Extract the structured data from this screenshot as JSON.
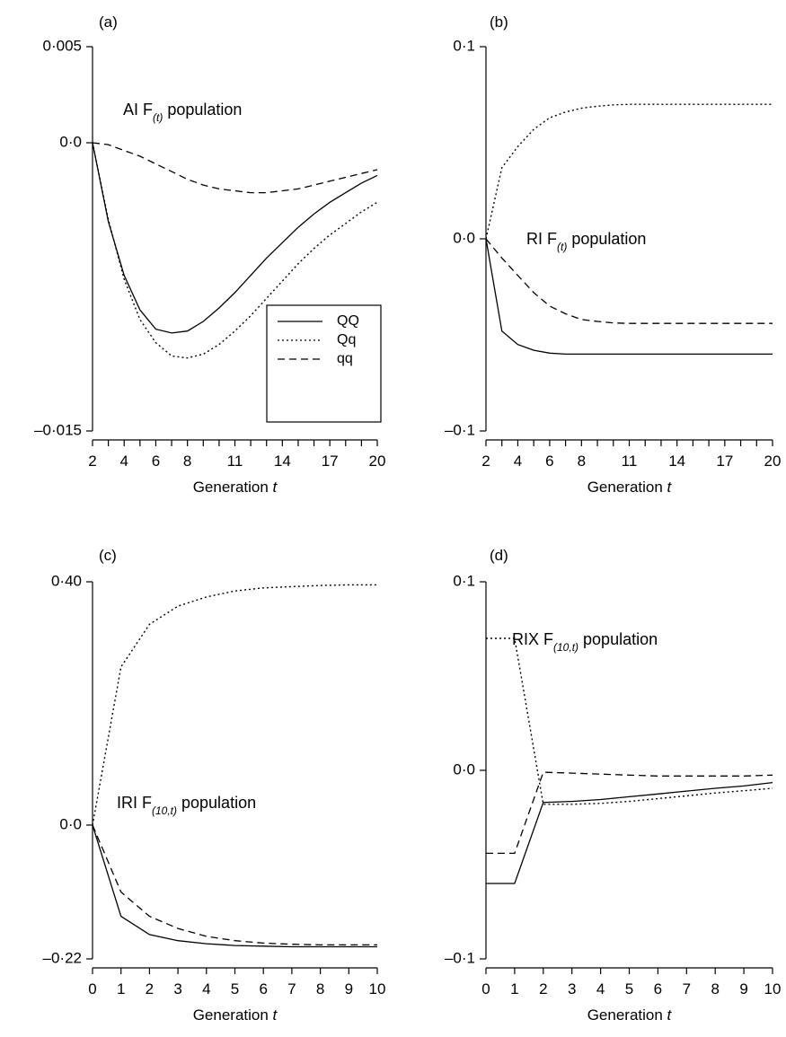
{
  "figure_title": "",
  "legend": {
    "entries": [
      {
        "label": "QQ",
        "style": "solid"
      },
      {
        "label": "Qq",
        "style": "dotted"
      },
      {
        "label": "qq",
        "style": "dashed"
      }
    ]
  },
  "chart_data": [
    {
      "type": "line",
      "panel_label": "(a)",
      "annotation": {
        "prefix": "AI F",
        "sub": "(t)",
        "suffix": " population"
      },
      "xlabel": "Generation t",
      "x_ticks": [
        2,
        3,
        4,
        5,
        6,
        7,
        8,
        9,
        10,
        11,
        12,
        13,
        14,
        15,
        16,
        17,
        18,
        19,
        20
      ],
      "x_tick_labels": [
        "2",
        "4",
        "6",
        "8",
        "11",
        "14",
        "17",
        "20"
      ],
      "x_labeled_values": [
        2,
        4,
        6,
        8,
        11,
        14,
        17,
        20
      ],
      "xlim": [
        2,
        20
      ],
      "ylim": [
        -0.015,
        0.005
      ],
      "y_ticks": [
        0.005,
        0.0,
        -0.015
      ],
      "y_tick_labels": [
        "0·005",
        "0·0",
        "–0·015"
      ],
      "x": [
        2,
        3,
        4,
        5,
        6,
        7,
        8,
        9,
        10,
        11,
        12,
        13,
        14,
        15,
        16,
        17,
        18,
        19,
        20
      ],
      "series": [
        {
          "name": "QQ",
          "style": "solid",
          "values": [
            0.0,
            -0.0041,
            -0.0069,
            -0.0087,
            -0.0097,
            -0.0099,
            -0.0098,
            -0.0093,
            -0.0086,
            -0.0078,
            -0.0069,
            -0.006,
            -0.0052,
            -0.0044,
            -0.0037,
            -0.0031,
            -0.0026,
            -0.0021,
            -0.0017
          ]
        },
        {
          "name": "Qq",
          "style": "dotted",
          "values": [
            0.0,
            -0.004,
            -0.0071,
            -0.0092,
            -0.0104,
            -0.0111,
            -0.0112,
            -0.011,
            -0.0105,
            -0.0098,
            -0.009,
            -0.0081,
            -0.0072,
            -0.0063,
            -0.0055,
            -0.0048,
            -0.0042,
            -0.0036,
            -0.0031
          ]
        },
        {
          "name": "qq",
          "style": "dashed",
          "values": [
            0.0,
            -0.0001,
            -0.0004,
            -0.0007,
            -0.0011,
            -0.0015,
            -0.0019,
            -0.0022,
            -0.0024,
            -0.0025,
            -0.0026,
            -0.0026,
            -0.0025,
            -0.0024,
            -0.0022,
            -0.002,
            -0.0018,
            -0.0016,
            -0.0014
          ]
        }
      ],
      "legend_placement": "lower-right"
    },
    {
      "type": "line",
      "panel_label": "(b)",
      "annotation": {
        "prefix": "RI F",
        "sub": "(t)",
        "suffix": " population"
      },
      "xlabel": "Generation t",
      "x_ticks": [
        2,
        3,
        4,
        5,
        6,
        7,
        8,
        9,
        10,
        11,
        12,
        13,
        14,
        15,
        16,
        17,
        18,
        19,
        20
      ],
      "x_tick_labels": [
        "2",
        "4",
        "6",
        "8",
        "11",
        "14",
        "17",
        "20"
      ],
      "x_labeled_values": [
        2,
        4,
        6,
        8,
        11,
        14,
        17,
        20
      ],
      "xlim": [
        2,
        20
      ],
      "ylim": [
        -0.1,
        0.1
      ],
      "y_ticks": [
        0.1,
        0.0,
        -0.1
      ],
      "y_tick_labels": [
        "0·1",
        "0·0",
        "–0·1"
      ],
      "x": [
        2,
        3,
        4,
        5,
        6,
        7,
        8,
        9,
        10,
        11,
        12,
        13,
        14,
        15,
        16,
        17,
        18,
        19,
        20
      ],
      "series": [
        {
          "name": "QQ",
          "style": "solid",
          "values": [
            0.0,
            -0.048,
            -0.055,
            -0.058,
            -0.0595,
            -0.06,
            -0.06,
            -0.06,
            -0.06,
            -0.06,
            -0.06,
            -0.06,
            -0.06,
            -0.06,
            -0.06,
            -0.06,
            -0.06,
            -0.06,
            -0.06
          ]
        },
        {
          "name": "Qq",
          "style": "dotted",
          "values": [
            0.0,
            0.037,
            0.048,
            0.057,
            0.063,
            0.066,
            0.068,
            0.069,
            0.0697,
            0.07,
            0.07,
            0.07,
            0.07,
            0.07,
            0.07,
            0.07,
            0.07,
            0.07,
            0.07
          ]
        },
        {
          "name": "qq",
          "style": "dashed",
          "values": [
            0.0,
            -0.01,
            -0.019,
            -0.028,
            -0.035,
            -0.039,
            -0.042,
            -0.043,
            -0.0438,
            -0.044,
            -0.044,
            -0.044,
            -0.044,
            -0.044,
            -0.044,
            -0.044,
            -0.044,
            -0.044,
            -0.044
          ]
        }
      ]
    },
    {
      "type": "line",
      "panel_label": "(c)",
      "annotation": {
        "prefix": "IRI F",
        "sub": "(10,t)",
        "suffix": " population"
      },
      "xlabel": "Generation t",
      "x_ticks": [
        0,
        1,
        2,
        3,
        4,
        5,
        6,
        7,
        8,
        9,
        10
      ],
      "x_tick_labels": [
        "0",
        "1",
        "2",
        "3",
        "4",
        "5",
        "6",
        "7",
        "8",
        "9",
        "10"
      ],
      "x_labeled_values": [
        0,
        1,
        2,
        3,
        4,
        5,
        6,
        7,
        8,
        9,
        10
      ],
      "xlim": [
        0,
        10
      ],
      "ylim": [
        -0.22,
        0.4
      ],
      "y_ticks": [
        0.4,
        0.0,
        -0.22
      ],
      "y_tick_labels": [
        "0·40",
        "0·0",
        "–0·22"
      ],
      "x": [
        0,
        1,
        2,
        3,
        4,
        5,
        6,
        7,
        8,
        9,
        10
      ],
      "series": [
        {
          "name": "QQ",
          "style": "solid",
          "values": [
            0.0,
            -0.15,
            -0.18,
            -0.19,
            -0.195,
            -0.198,
            -0.199,
            -0.2,
            -0.2,
            -0.2,
            -0.2
          ]
        },
        {
          "name": "Qq",
          "style": "dotted",
          "values": [
            0.0,
            0.26,
            0.33,
            0.36,
            0.375,
            0.385,
            0.39,
            0.392,
            0.394,
            0.395,
            0.395
          ]
        },
        {
          "name": "qq",
          "style": "dashed",
          "values": [
            0.0,
            -0.11,
            -0.15,
            -0.17,
            -0.183,
            -0.19,
            -0.194,
            -0.196,
            -0.197,
            -0.197,
            -0.197
          ]
        }
      ]
    },
    {
      "type": "line",
      "panel_label": "(d)",
      "annotation": {
        "prefix": "RIX F",
        "sub": "(10,t)",
        "suffix": " population"
      },
      "xlabel": "Generation t",
      "x_ticks": [
        0,
        1,
        2,
        3,
        4,
        5,
        6,
        7,
        8,
        9,
        10
      ],
      "x_tick_labels": [
        "0",
        "1",
        "2",
        "3",
        "4",
        "5",
        "6",
        "7",
        "8",
        "9",
        "10"
      ],
      "x_labeled_values": [
        0,
        1,
        2,
        3,
        4,
        5,
        6,
        7,
        8,
        9,
        10
      ],
      "xlim": [
        0,
        10
      ],
      "ylim": [
        -0.1,
        0.1
      ],
      "y_ticks": [
        0.1,
        0.0,
        -0.1
      ],
      "y_tick_labels": [
        "0·1",
        "0·0",
        "–0·1"
      ],
      "x": [
        0,
        1,
        2,
        3,
        4,
        5,
        6,
        7,
        8,
        9,
        10
      ],
      "series": [
        {
          "name": "QQ",
          "style": "solid",
          "values": [
            -0.06,
            -0.06,
            -0.017,
            -0.0165,
            -0.0155,
            -0.014,
            -0.0125,
            -0.011,
            -0.0095,
            -0.0083,
            -0.0065
          ]
        },
        {
          "name": "Qq",
          "style": "dotted",
          "values": [
            0.07,
            0.07,
            -0.018,
            -0.018,
            -0.0175,
            -0.0165,
            -0.015,
            -0.0135,
            -0.012,
            -0.0108,
            -0.0095
          ]
        },
        {
          "name": "qq",
          "style": "dashed",
          "values": [
            -0.044,
            -0.044,
            -0.001,
            -0.0015,
            -0.002,
            -0.0025,
            -0.003,
            -0.003,
            -0.003,
            -0.003,
            -0.0025
          ]
        }
      ]
    }
  ]
}
